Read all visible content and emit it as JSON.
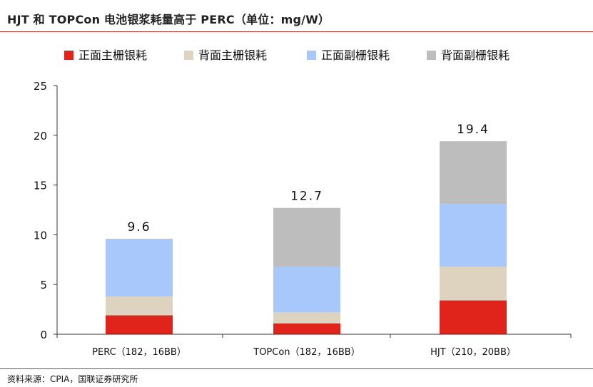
{
  "title": "HJT 和 TOPCon 电池银浆耗量高于 PERC（单位：mg/W）",
  "source": "资料来源：CPIA，国联证券研究所",
  "chart_data": {
    "type": "bar",
    "stacked": true,
    "categories": [
      "PERC（182，16BB）",
      "TOPCon（182，16BB）",
      "HJT（210，20BB）"
    ],
    "series": [
      {
        "name": "正面主栅银耗",
        "color": "#e0241b",
        "values": [
          1.9,
          1.1,
          3.4
        ]
      },
      {
        "name": "背面主栅银耗",
        "color": "#ddd3be",
        "values": [
          1.9,
          1.1,
          3.4
        ]
      },
      {
        "name": "正面副栅银耗",
        "color": "#a8c8fb",
        "values": [
          5.8,
          4.6,
          6.3
        ]
      },
      {
        "name": "背面副栅银耗",
        "color": "#bdbdbd",
        "values": [
          0,
          5.9,
          6.3
        ]
      }
    ],
    "totals": [
      9.6,
      12.7,
      19.4
    ],
    "total_labels": [
      "9.6",
      "12.7",
      "19.4"
    ],
    "ylim": [
      0,
      25
    ],
    "yticks": [
      "0",
      "5",
      "10",
      "15",
      "20",
      "25"
    ],
    "legend_position": "top",
    "grid": false
  }
}
